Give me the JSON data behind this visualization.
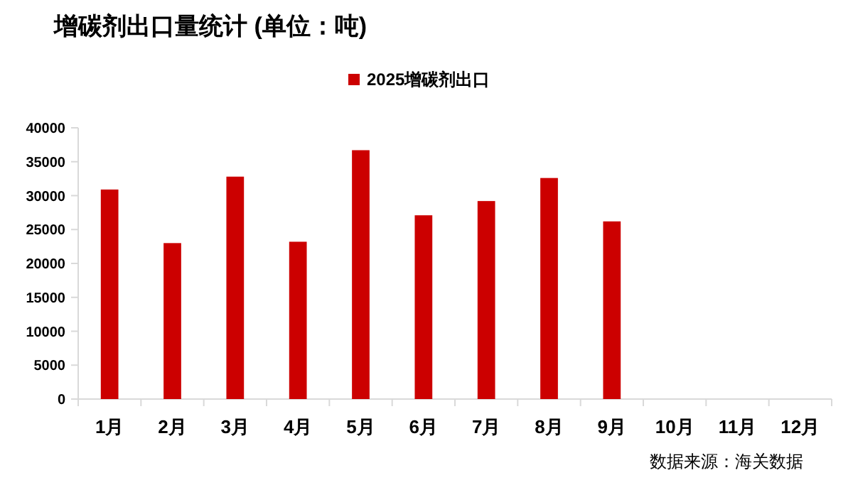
{
  "chart_data": {
    "type": "bar",
    "title": "增碳剂出口量统计 (单位：吨)",
    "categories": [
      "1月",
      "2月",
      "3月",
      "4月",
      "5月",
      "6月",
      "7月",
      "8月",
      "9月",
      "10月",
      "11月",
      "12月"
    ],
    "series": [
      {
        "name": "2025增碳剂出口",
        "color": "#cc0000",
        "values": [
          30900,
          23000,
          32800,
          23200,
          36700,
          27100,
          29200,
          32600,
          26200,
          null,
          null,
          null
        ]
      }
    ],
    "ylim": [
      0,
      40000
    ],
    "yticks": [
      0,
      5000,
      10000,
      15000,
      20000,
      25000,
      30000,
      35000,
      40000
    ],
    "grid": false,
    "legend": "top",
    "annotations": [
      "数据来源：海关数据"
    ]
  }
}
